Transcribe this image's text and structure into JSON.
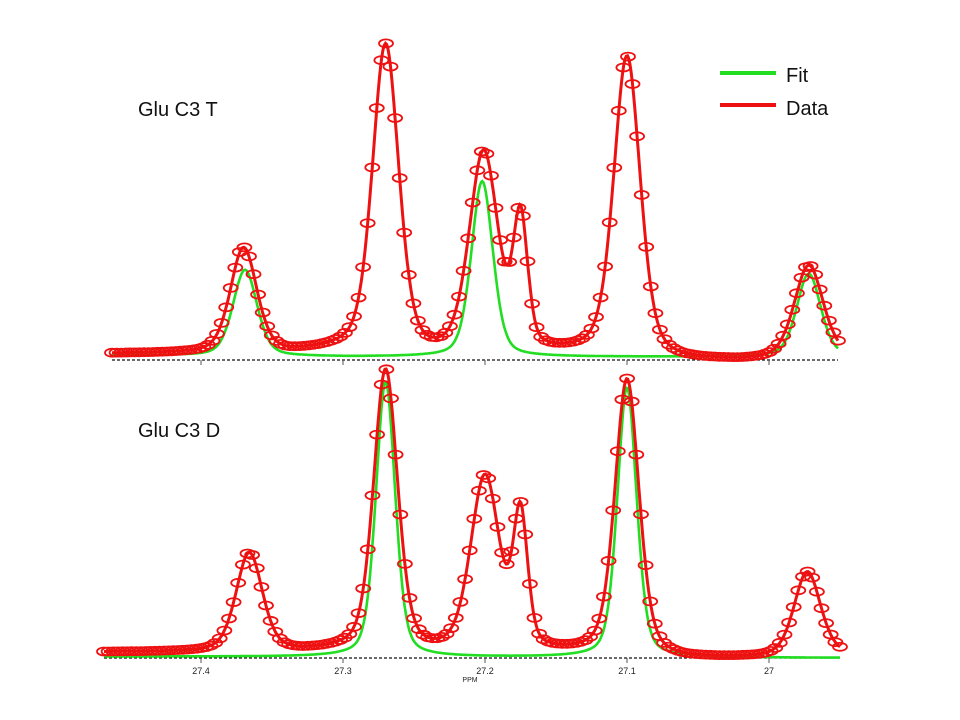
{
  "chart_data": {
    "type": "line",
    "xlabel": "PPM",
    "x_axis_reversed": true,
    "xlim": [
      27.45,
      26.94
    ],
    "xticks": [
      27.4,
      27.3,
      27.2,
      27.1,
      27.0
    ],
    "xtick_labels": [
      "27.4",
      "27.3",
      "27.2",
      "27.1",
      "27"
    ],
    "legend": {
      "position": "top-right",
      "entries": [
        {
          "label": "Fit",
          "color": "#22dd22"
        },
        {
          "label": "Data",
          "color": "#ee1111"
        }
      ]
    },
    "colors": {
      "fit": "#22dd22",
      "data": "#ee1111",
      "baseline": "#111111"
    },
    "panels": [
      {
        "id": "top",
        "title": "Glu C3 T",
        "ylim": [
          -0.02,
          1.05
        ],
        "data_peaks": [
          {
            "center": 27.37,
            "height": 0.34,
            "width": 0.022
          },
          {
            "center": 27.27,
            "height": 1.0,
            "width": 0.022
          },
          {
            "center": 27.175,
            "height": 0.42,
            "width": 0.012
          },
          {
            "center": 27.201,
            "height": 0.65,
            "width": 0.024
          },
          {
            "center": 27.1,
            "height": 0.97,
            "width": 0.022
          },
          {
            "center": 26.972,
            "height": 0.3,
            "width": 0.024
          }
        ],
        "fit_peaks": [
          {
            "center": 27.369,
            "height": 0.28,
            "width": 0.02
          },
          {
            "center": 27.202,
            "height": 0.57,
            "width": 0.018
          },
          {
            "center": 26.972,
            "height": 0.27,
            "width": 0.02
          }
        ],
        "data_baseline": [
          [
            27.45,
            0.02
          ],
          [
            27.34,
            0.02
          ],
          [
            27.3,
            0.03
          ],
          [
            27.25,
            0.01
          ],
          [
            27.22,
            0.01
          ],
          [
            27.12,
            0.02
          ],
          [
            27.06,
            -0.005
          ],
          [
            27.02,
            -0.005
          ],
          [
            26.94,
            0.01
          ]
        ],
        "fit_baseline": [
          [
            27.45,
            0.015
          ],
          [
            27.3,
            0.01
          ],
          [
            27.22,
            0.01
          ],
          [
            27.0,
            0.01
          ],
          [
            26.94,
            0.01
          ]
        ],
        "n_markers": 160
      },
      {
        "id": "bottom",
        "title": "Glu C3 D",
        "ylim": [
          -0.02,
          1.05
        ],
        "data_peaks": [
          {
            "center": 27.366,
            "height": 0.35,
            "width": 0.022
          },
          {
            "center": 27.27,
            "height": 1.0,
            "width": 0.02
          },
          {
            "center": 27.175,
            "height": 0.47,
            "width": 0.012
          },
          {
            "center": 27.2,
            "height": 0.62,
            "width": 0.024
          },
          {
            "center": 27.1,
            "height": 0.98,
            "width": 0.02
          },
          {
            "center": 26.973,
            "height": 0.3,
            "width": 0.022
          }
        ],
        "fit_peaks": [
          {
            "center": 27.27,
            "height": 0.98,
            "width": 0.016
          },
          {
            "center": 27.1,
            "height": 0.96,
            "width": 0.016
          }
        ],
        "data_baseline": [
          [
            27.45,
            0.02
          ],
          [
            27.33,
            0.02
          ],
          [
            27.3,
            0.025
          ],
          [
            27.24,
            0.015
          ],
          [
            27.12,
            0.015
          ],
          [
            27.06,
            -0.005
          ],
          [
            27.0,
            0.0
          ],
          [
            26.94,
            0.01
          ]
        ],
        "fit_baseline": [
          [
            27.45,
            0.005
          ],
          [
            26.94,
            0.0
          ]
        ],
        "n_markers": 160
      }
    ]
  }
}
